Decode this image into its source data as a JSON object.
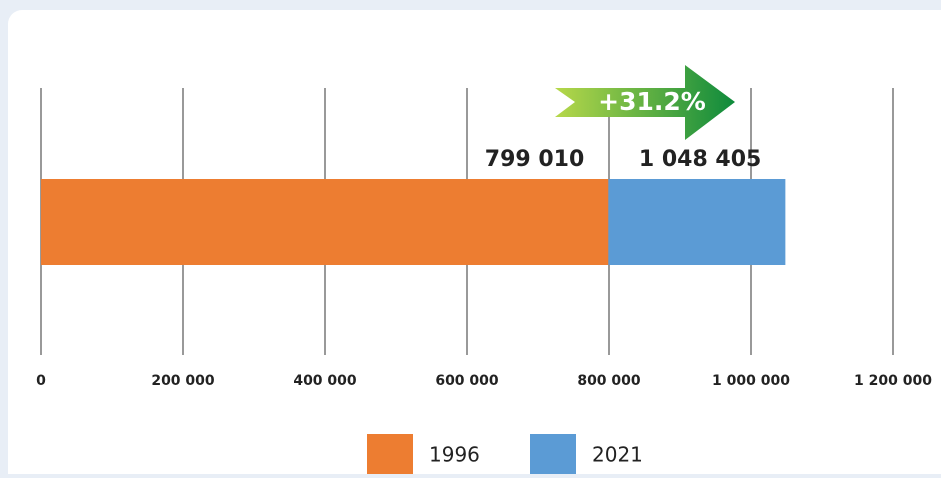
{
  "chart_data": {
    "type": "bar",
    "orientation": "horizontal",
    "overlap": true,
    "series": [
      {
        "name": "1996",
        "color": "#ed7d31",
        "values": [
          799010
        ],
        "value_labels": [
          "799 010"
        ]
      },
      {
        "name": "2021",
        "color": "#5b9bd5",
        "values": [
          1048405
        ],
        "value_labels": [
          "1 048 405"
        ]
      }
    ],
    "annotation": "+31.2%",
    "xlim": [
      0,
      1200000
    ],
    "xticks": [
      0,
      {
        "value": 200000,
        "label": "200 000"
      },
      {
        "value": 400000,
        "label": "400 000"
      },
      {
        "value": 600000,
        "label": "600 000"
      },
      {
        "value": 800000,
        "label": "800 000"
      },
      {
        "value": 1000000,
        "label": "1 000 000"
      },
      {
        "value": 1200000,
        "label": "1 200 000"
      }
    ],
    "grid": true,
    "legend": "bottom"
  }
}
